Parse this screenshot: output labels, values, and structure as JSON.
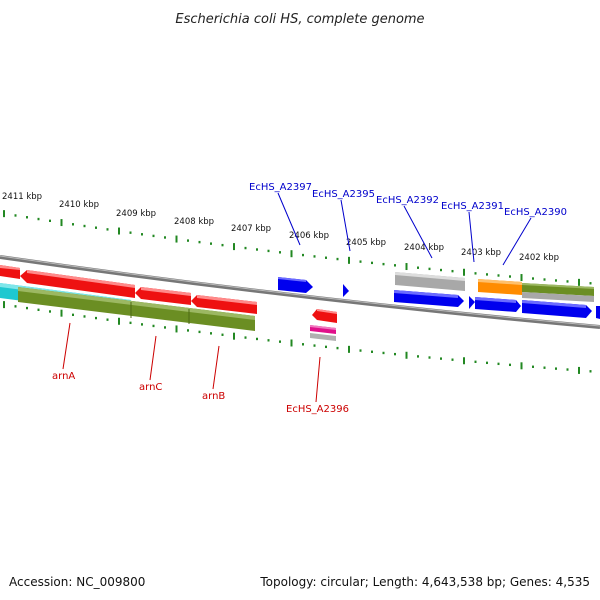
{
  "title": "Escherichia coli HS, complete genome",
  "footer": {
    "accession": "Accession: NC_009800",
    "topology": "Topology: circular; Length: 4,643,538 bp; Genes: 4,535"
  },
  "colors": {
    "forward_label": "#0000cc",
    "reverse_label": "#cc0000",
    "tick": "#228822",
    "backbone": "#777777",
    "red_gene": "#ee1111",
    "blue_gene": "#0000ee",
    "olive_gene": "#6b8e23",
    "cyan_gene": "#1ec8d0",
    "grey_gene": "#a8a8a8",
    "orange_gene": "#ff8c00",
    "magenta_gene": "#e0108a"
  },
  "scale_labels": [
    "2411 kbp",
    "2410 kbp",
    "2409 kbp",
    "2408 kbp",
    "2407 kbp",
    "2406 kbp",
    "2405 kbp",
    "2404 kbp",
    "2403 kbp",
    "2402 kbp"
  ],
  "forward_labels": [
    "EcHS_A2397",
    "EcHS_A2395",
    "EcHS_A2392",
    "EcHS_A2391",
    "EcHS_A2390"
  ],
  "reverse_labels": [
    "arnA",
    "arnC",
    "arnB",
    "EcHS_A2396"
  ]
}
